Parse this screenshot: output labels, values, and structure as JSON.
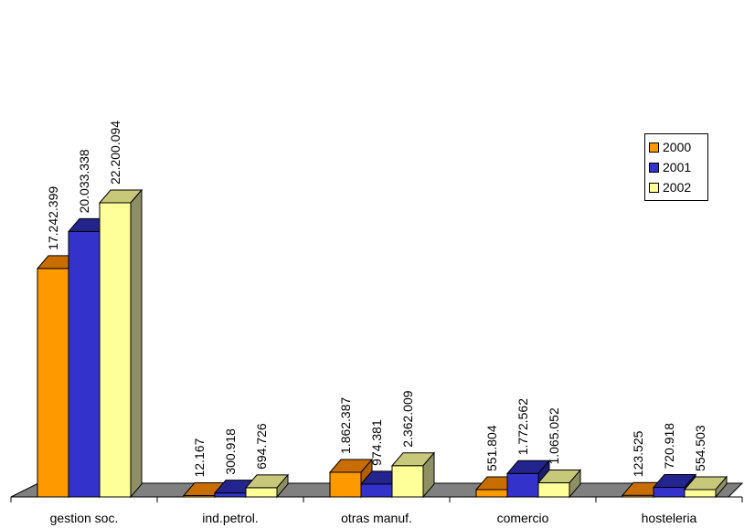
{
  "chart_data": {
    "type": "bar",
    "categories": [
      "gestion soc.",
      "ind.petrol.",
      "otras manuf.",
      "comercio",
      "hosteleria"
    ],
    "series": [
      {
        "name": "2000",
        "values": [
          17242399,
          12167,
          1862387,
          551804,
          123525
        ],
        "labels": [
          "17.242.399",
          "12.167",
          "1.862.387",
          "551.804",
          "123.525"
        ],
        "color": "#FF9900",
        "top_color": "#C86E00",
        "side_color": "#B06000"
      },
      {
        "name": "2001",
        "values": [
          20033338,
          300918,
          974381,
          1772562,
          720918
        ],
        "labels": [
          "20.033.338",
          "300.918",
          "974.381",
          "1.772.562",
          "720.918"
        ],
        "color": "#3333CC",
        "top_color": "#24248F",
        "side_color": "#1C1C70"
      },
      {
        "name": "2002",
        "values": [
          22200094,
          694726,
          2362009,
          1065052,
          554503
        ],
        "labels": [
          "22.200.094",
          "694.726",
          "2.362.009",
          "1.065.052",
          "554.503"
        ],
        "color": "#FFFF99",
        "top_color": "#C8C87A",
        "side_color": "#8F8F66"
      }
    ],
    "floor_color": "#808080",
    "legend_position": "right",
    "grid": false
  }
}
